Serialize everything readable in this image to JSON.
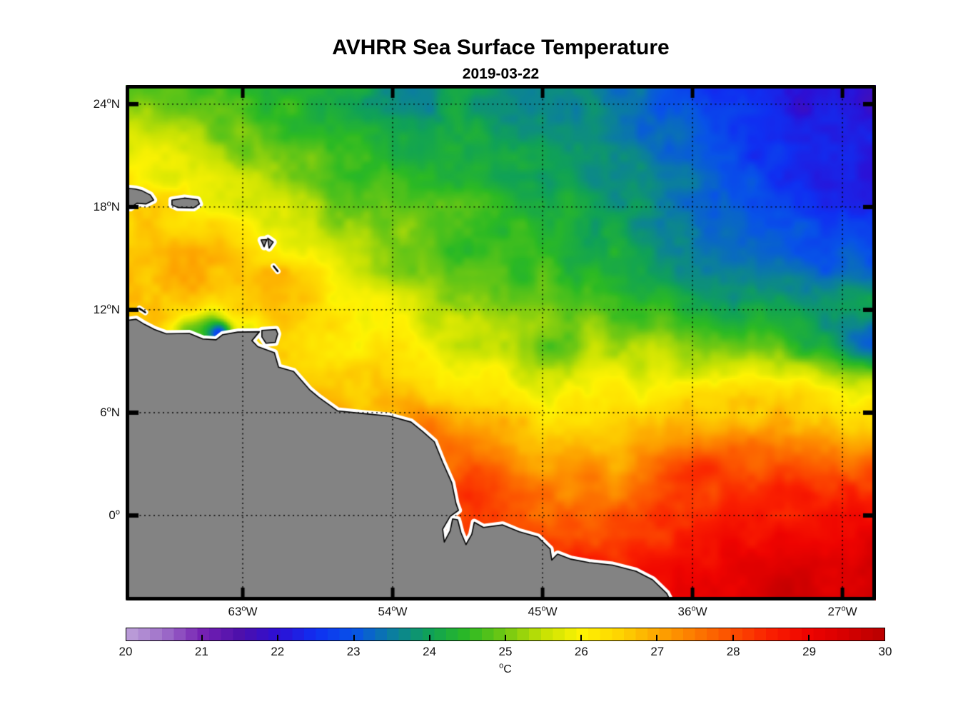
{
  "figure": {
    "title": "AVHRR Sea Surface Temperature",
    "date": "2019-03-22"
  },
  "chart_data": {
    "type": "heatmap",
    "title": "AVHRR Sea Surface Temperature",
    "subtitle": "2019-03-22",
    "variable": "Sea Surface Temperature",
    "units": {
      "sup": "o",
      "base": "C"
    },
    "map_extent": {
      "lon_min": -70.03,
      "lon_max": -24.99,
      "lat_min": -4.96,
      "lat_max": 25.12
    },
    "grid_on": true,
    "x_axis": {
      "ticks": [
        {
          "lon": -63,
          "deg": "63",
          "hem": "W"
        },
        {
          "lon": -54,
          "deg": "54",
          "hem": "W"
        },
        {
          "lon": -45,
          "deg": "45",
          "hem": "W"
        },
        {
          "lon": -36,
          "deg": "36",
          "hem": "W"
        },
        {
          "lon": -27,
          "deg": "27",
          "hem": "W"
        }
      ]
    },
    "y_axis": {
      "ticks": [
        {
          "lat": 24,
          "deg": "24",
          "hem": "N"
        },
        {
          "lat": 18,
          "deg": "18",
          "hem": "N"
        },
        {
          "lat": 12,
          "deg": "12",
          "hem": "N"
        },
        {
          "lat": 6,
          "deg": "6",
          "hem": "N"
        },
        {
          "lat": 0,
          "deg": "0",
          "hem": ""
        }
      ]
    },
    "colorbar": {
      "min": 20,
      "max": 30,
      "segments": 64,
      "tick_labels": [
        "20",
        "21",
        "22",
        "23",
        "24",
        "25",
        "26",
        "27",
        "28",
        "29",
        "30"
      ],
      "inner_tick_values": [
        21,
        22,
        23,
        24,
        25,
        26,
        27,
        28,
        29
      ],
      "stops": [
        [
          20.0,
          "#bfa3da"
        ],
        [
          20.5,
          "#9e6fc9"
        ],
        [
          21.0,
          "#7722b4"
        ],
        [
          21.5,
          "#4d10ab"
        ],
        [
          22.0,
          "#2e0fd4"
        ],
        [
          22.5,
          "#1030f2"
        ],
        [
          23.0,
          "#0853e8"
        ],
        [
          23.5,
          "#0b7da2"
        ],
        [
          24.0,
          "#10a257"
        ],
        [
          24.5,
          "#2cba24"
        ],
        [
          25.0,
          "#73c913"
        ],
        [
          25.5,
          "#c6e204"
        ],
        [
          26.0,
          "#fef303"
        ],
        [
          26.5,
          "#fed501"
        ],
        [
          27.0,
          "#fda701"
        ],
        [
          27.5,
          "#fd7a00"
        ],
        [
          28.0,
          "#fc4d00"
        ],
        [
          28.5,
          "#fa1f00"
        ],
        [
          29.0,
          "#ef0400"
        ],
        [
          29.5,
          "#d60000"
        ],
        [
          30.0,
          "#b90000"
        ]
      ]
    },
    "sst_grid": {
      "lon_start": -70.0,
      "lon_step": 2.5,
      "lat_start": 25.1,
      "lat_step": -2.5,
      "values": [
        [
          24.9,
          24.8,
          24.7,
          24.5,
          24.3,
          24.2,
          24.1,
          24.0,
          24.0,
          23.9,
          23.8,
          23.6,
          23.3,
          23.0,
          22.6,
          22.3,
          22.1,
          22.0,
          21.9
        ],
        [
          25.6,
          25.4,
          25.1,
          24.8,
          24.6,
          24.4,
          24.3,
          24.2,
          24.1,
          24.0,
          23.9,
          23.7,
          23.5,
          23.2,
          22.8,
          22.5,
          22.3,
          22.2,
          22.1
        ],
        [
          26.1,
          25.9,
          25.6,
          25.3,
          25.0,
          24.8,
          24.6,
          24.4,
          24.3,
          24.2,
          24.1,
          23.9,
          23.7,
          23.4,
          23.1,
          22.8,
          22.5,
          22.3,
          22.2
        ],
        [
          26.5,
          26.4,
          26.2,
          25.9,
          25.5,
          25.2,
          25.0,
          24.8,
          24.6,
          24.4,
          24.3,
          24.1,
          23.9,
          23.6,
          23.3,
          23.1,
          22.8,
          22.6,
          22.5
        ],
        [
          26.8,
          26.8,
          26.7,
          26.5,
          26.1,
          25.7,
          25.3,
          25.0,
          24.8,
          24.6,
          24.5,
          24.3,
          24.1,
          23.9,
          23.6,
          23.4,
          23.2,
          23.0,
          22.9
        ],
        [
          26.7,
          26.8,
          26.8,
          26.8,
          26.6,
          26.2,
          25.8,
          25.5,
          25.2,
          25.0,
          24.9,
          24.7,
          24.5,
          24.3,
          24.1,
          23.9,
          23.8,
          23.9,
          24.0
        ],
        [
          26.6,
          26.7,
          26.7,
          26.6,
          26.4,
          26.3,
          26.1,
          25.9,
          25.7,
          25.6,
          25.5,
          25.4,
          25.3,
          25.2,
          25.0,
          24.8,
          24.5,
          24.0,
          23.4
        ],
        [
          26.6,
          26.7,
          26.8,
          26.8,
          26.8,
          26.7,
          26.5,
          26.3,
          26.2,
          26.1,
          26.0,
          25.9,
          25.9,
          25.9,
          26.0,
          26.1,
          26.1,
          25.9,
          25.5
        ],
        [
          27.0,
          27.0,
          27.0,
          27.0,
          27.1,
          27.1,
          27.0,
          27.3,
          27.0,
          26.8,
          26.6,
          26.5,
          26.5,
          26.6,
          26.8,
          27.0,
          27.0,
          26.8,
          26.6
        ],
        [
          27.4,
          27.4,
          27.4,
          27.4,
          27.4,
          27.4,
          27.4,
          27.6,
          27.8,
          27.5,
          27.3,
          27.2,
          27.2,
          27.4,
          27.7,
          27.9,
          28.1,
          28.0,
          27.8
        ],
        [
          27.8,
          27.8,
          27.8,
          27.8,
          27.8,
          27.8,
          27.8,
          27.9,
          28.0,
          27.8,
          27.6,
          27.7,
          27.9,
          28.1,
          28.3,
          28.5,
          28.6,
          28.5,
          28.7
        ],
        [
          28.2,
          28.2,
          28.2,
          28.2,
          28.2,
          28.2,
          28.2,
          28.2,
          28.3,
          28.2,
          28.2,
          28.4,
          28.5,
          28.6,
          28.8,
          29.0,
          29.1,
          29.0,
          29.2
        ],
        [
          28.6,
          28.6,
          28.6,
          28.6,
          28.6,
          28.6,
          28.6,
          28.6,
          28.6,
          28.6,
          28.7,
          28.8,
          28.9,
          29.0,
          29.2,
          29.4,
          29.5,
          29.4,
          29.6
        ]
      ]
    },
    "features": [
      {
        "lon": -66.5,
        "lat": 10.7,
        "sigma": 0.7,
        "delta": -1.2
      },
      {
        "lon": -64.9,
        "lat": 10.78,
        "sigma": 0.85,
        "delta": -2.0
      },
      {
        "lon": -64.35,
        "lat": 10.55,
        "sigma": 0.45,
        "delta": -2.2
      },
      {
        "lon": -62.6,
        "lat": 10.9,
        "sigma": 0.6,
        "delta": -0.9
      },
      {
        "lon": -24.85,
        "lat": 9.9,
        "sigma": 0.9,
        "delta": -0.5
      },
      {
        "lon": -60.6,
        "lat": 14.1,
        "sigma": 0.9,
        "delta": 0.35
      },
      {
        "lon": -53.0,
        "lat": 23.9,
        "sigma": 1.6,
        "delta": -0.35
      },
      {
        "lon": -44.5,
        "lat": 9.3,
        "sigma": 1.3,
        "delta": -0.6
      },
      {
        "lon": -36.0,
        "lat": 3.2,
        "sigma": 1.8,
        "delta": 0.55
      },
      {
        "lon": -48.5,
        "lat": 0.8,
        "sigma": 1.3,
        "delta": 0.5
      },
      {
        "lon": -51.5,
        "lat": 5.3,
        "sigma": 1.2,
        "delta": 0.4
      },
      {
        "lon": -28.0,
        "lat": -2.0,
        "sigma": 2.2,
        "delta": 0.3
      }
    ],
    "noise": {
      "seed": 7,
      "octaves": [
        {
          "scale": 1.4,
          "amp": 0.26
        },
        {
          "scale": 0.55,
          "amp": 0.11
        }
      ]
    },
    "land": {
      "color": "#838383",
      "outline": "#000000",
      "halo": "#ffffff",
      "mainland": [
        [
          -70.6,
          11.3
        ],
        [
          -69.4,
          11.45
        ],
        [
          -68.9,
          11.15
        ],
        [
          -68.3,
          10.85
        ],
        [
          -67.6,
          10.6
        ],
        [
          -66.2,
          10.62
        ],
        [
          -65.4,
          10.3
        ],
        [
          -64.6,
          10.25
        ],
        [
          -64.2,
          10.55
        ],
        [
          -63.3,
          10.7
        ],
        [
          -62.0,
          10.72
        ],
        [
          -62.45,
          10.2
        ],
        [
          -62.1,
          9.85
        ],
        [
          -61.1,
          9.5
        ],
        [
          -60.85,
          8.65
        ],
        [
          -59.95,
          8.4
        ],
        [
          -59.0,
          7.35
        ],
        [
          -58.45,
          6.9
        ],
        [
          -57.3,
          6.1
        ],
        [
          -55.8,
          5.95
        ],
        [
          -54.2,
          5.8
        ],
        [
          -52.9,
          5.45
        ],
        [
          -52.2,
          4.9
        ],
        [
          -51.5,
          4.3
        ],
        [
          -51.0,
          3.1
        ],
        [
          -50.45,
          1.9
        ],
        [
          -50.2,
          0.7
        ],
        [
          -50.05,
          0.3
        ],
        [
          -50.55,
          -0.05
        ],
        [
          -51.0,
          -0.8
        ],
        [
          -50.9,
          -1.55
        ],
        [
          -50.55,
          -0.9
        ],
        [
          -50.4,
          -0.2
        ],
        [
          -50.1,
          -0.25
        ],
        [
          -49.9,
          -1.0
        ],
        [
          -49.6,
          -1.7
        ],
        [
          -49.25,
          -1.1
        ],
        [
          -49.1,
          -0.4
        ],
        [
          -48.55,
          -0.7
        ],
        [
          -47.4,
          -0.55
        ],
        [
          -46.4,
          -0.95
        ],
        [
          -45.3,
          -1.25
        ],
        [
          -44.55,
          -1.95
        ],
        [
          -44.45,
          -2.6
        ],
        [
          -44.1,
          -2.25
        ],
        [
          -43.3,
          -2.55
        ],
        [
          -42.2,
          -2.75
        ],
        [
          -40.8,
          -2.9
        ],
        [
          -39.4,
          -3.25
        ],
        [
          -38.4,
          -3.75
        ],
        [
          -37.55,
          -4.55
        ],
        [
          -37.0,
          -5.6
        ],
        [
          -70.6,
          -5.6
        ]
      ],
      "islands": [
        {
          "name": "hispaniola",
          "pts": [
            [
              -70.6,
              19.15
            ],
            [
              -69.45,
              19.05
            ],
            [
              -69.05,
              18.95
            ],
            [
              -68.55,
              18.7
            ],
            [
              -68.35,
              18.4
            ],
            [
              -68.8,
              18.18
            ],
            [
              -69.35,
              18.22
            ],
            [
              -69.75,
              17.95
            ],
            [
              -70.6,
              18.05
            ]
          ]
        },
        {
          "name": "puerto-rico",
          "pts": [
            [
              -67.25,
              18.4
            ],
            [
              -66.5,
              18.52
            ],
            [
              -65.7,
              18.42
            ],
            [
              -65.6,
              18.18
            ],
            [
              -65.95,
              17.95
            ],
            [
              -66.9,
              17.97
            ],
            [
              -67.25,
              18.12
            ]
          ]
        },
        {
          "name": "trinidad",
          "pts": [
            [
              -61.85,
              10.8
            ],
            [
              -61.0,
              10.85
            ],
            [
              -60.9,
              10.6
            ],
            [
              -61.05,
              10.1
            ],
            [
              -61.6,
              10.05
            ],
            [
              -61.85,
              10.42
            ]
          ]
        },
        {
          "name": "guadeloupe-west",
          "pts": [
            [
              -61.9,
              16.08
            ],
            [
              -61.55,
              16.1
            ],
            [
              -61.72,
              15.68
            ]
          ]
        },
        {
          "name": "guadeloupe-east",
          "pts": [
            [
              -61.5,
              16.18
            ],
            [
              -61.17,
              15.95
            ],
            [
              -61.42,
              15.6
            ]
          ]
        }
      ],
      "island_dashes": [
        {
          "name": "martinique",
          "pts": [
            [
              -61.15,
              14.55
            ],
            [
              -60.9,
              14.25
            ]
          ]
        },
        {
          "name": "curacao",
          "pts": [
            [
              -69.2,
              12.08
            ],
            [
              -68.85,
              11.85
            ]
          ]
        }
      ]
    }
  }
}
